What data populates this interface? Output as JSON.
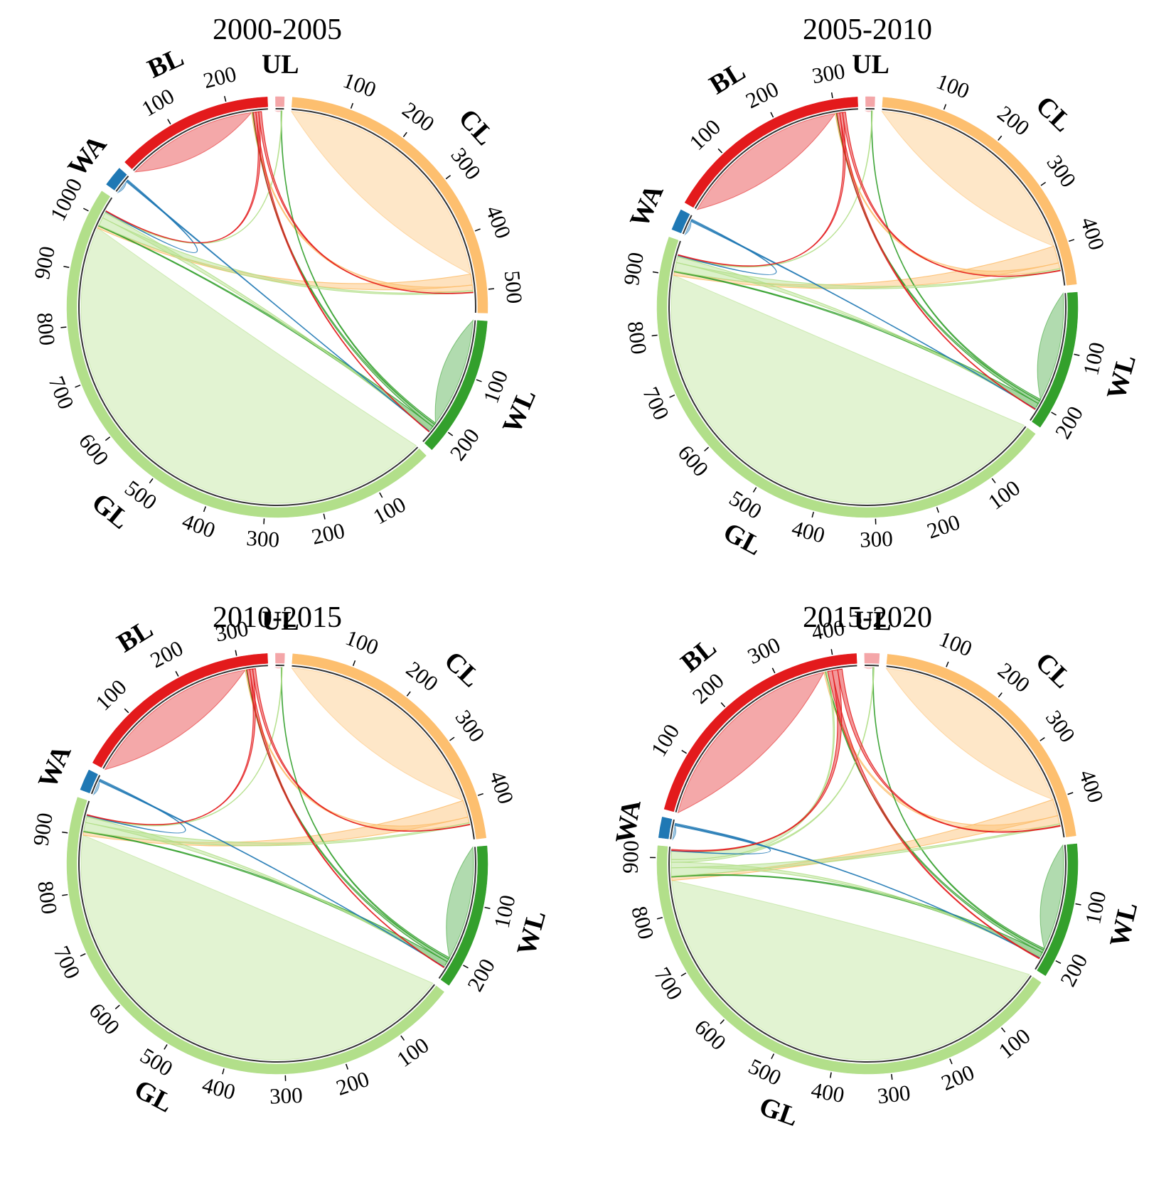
{
  "chart_data": [
    {
      "type": "chord",
      "title": "2000-2005",
      "sectors": [
        {
          "label": "UL",
          "size": 15,
          "color": "#f4a6a8",
          "ticks": []
        },
        {
          "label": "CL",
          "size": 540,
          "color": "#fdbf6f",
          "ticks": [
            100,
            200,
            300,
            400,
            500
          ]
        },
        {
          "label": "WL",
          "size": 240,
          "color": "#33a02c",
          "ticks": [
            100,
            200
          ]
        },
        {
          "label": "GL",
          "size": 1040,
          "color": "#b2df8a",
          "ticks": [
            100,
            200,
            300,
            400,
            500,
            600,
            700,
            800,
            900,
            1000
          ]
        },
        {
          "label": "WA",
          "size": 35,
          "color": "#1f78b4",
          "ticks": []
        },
        {
          "label": "BL",
          "size": 270,
          "color": "#e31a1c",
          "ticks": [
            100,
            200
          ]
        }
      ],
      "flows": [
        {
          "from": "UL",
          "to": "UL",
          "value": 10
        },
        {
          "from": "CL",
          "to": "CL",
          "value": 470
        },
        {
          "from": "CL",
          "to": "GL",
          "value": 20
        },
        {
          "from": "CL",
          "to": "BL",
          "value": 10
        },
        {
          "from": "WL",
          "to": "WL",
          "value": 200
        },
        {
          "from": "WL",
          "to": "UL",
          "value": 3
        },
        {
          "from": "WL",
          "to": "BL",
          "value": 5
        },
        {
          "from": "WL",
          "to": "GL",
          "value": 8
        },
        {
          "from": "GL",
          "to": "GL",
          "value": 980
        },
        {
          "from": "GL",
          "to": "CL",
          "value": 15
        },
        {
          "from": "GL",
          "to": "WL",
          "value": 10
        },
        {
          "from": "GL",
          "to": "UL",
          "value": 2
        },
        {
          "from": "WA",
          "to": "WA",
          "value": 25
        },
        {
          "from": "WA",
          "to": "WL",
          "value": 2
        },
        {
          "from": "WA",
          "to": "GL",
          "value": 2
        },
        {
          "from": "BL",
          "to": "BL",
          "value": 240
        },
        {
          "from": "BL",
          "to": "WL",
          "value": 5
        },
        {
          "from": "BL",
          "to": "GL",
          "value": 5
        },
        {
          "from": "BL",
          "to": "CL",
          "value": 5
        }
      ]
    },
    {
      "type": "chord",
      "title": "2005-2010",
      "sectors": [
        {
          "label": "UL",
          "size": 15,
          "color": "#f4a6a8",
          "ticks": []
        },
        {
          "label": "CL",
          "size": 470,
          "color": "#fdbf6f",
          "ticks": [
            100,
            200,
            300,
            400
          ]
        },
        {
          "label": "WL",
          "size": 230,
          "color": "#33a02c",
          "ticks": [
            100,
            200
          ]
        },
        {
          "label": "GL",
          "size": 960,
          "color": "#b2df8a",
          "ticks": [
            100,
            200,
            300,
            400,
            500,
            600,
            700,
            800,
            900
          ]
        },
        {
          "label": "WA",
          "size": 35,
          "color": "#1f78b4",
          "ticks": []
        },
        {
          "label": "BL",
          "size": 340,
          "color": "#e31a1c",
          "ticks": [
            100,
            200,
            300
          ]
        }
      ],
      "flows": [
        {
          "from": "UL",
          "to": "UL",
          "value": 10
        },
        {
          "from": "CL",
          "to": "CL",
          "value": 400
        },
        {
          "from": "CL",
          "to": "GL",
          "value": 30
        },
        {
          "from": "CL",
          "to": "BL",
          "value": 10
        },
        {
          "from": "WL",
          "to": "WL",
          "value": 190
        },
        {
          "from": "WL",
          "to": "UL",
          "value": 3
        },
        {
          "from": "WL",
          "to": "BL",
          "value": 5
        },
        {
          "from": "WL",
          "to": "GL",
          "value": 8
        },
        {
          "from": "GL",
          "to": "GL",
          "value": 900
        },
        {
          "from": "GL",
          "to": "CL",
          "value": 15
        },
        {
          "from": "GL",
          "to": "WL",
          "value": 10
        },
        {
          "from": "GL",
          "to": "UL",
          "value": 2
        },
        {
          "from": "WA",
          "to": "WA",
          "value": 25
        },
        {
          "from": "WA",
          "to": "WL",
          "value": 2
        },
        {
          "from": "WA",
          "to": "GL",
          "value": 2
        },
        {
          "from": "BL",
          "to": "BL",
          "value": 300
        },
        {
          "from": "BL",
          "to": "WL",
          "value": 5
        },
        {
          "from": "BL",
          "to": "GL",
          "value": 5
        },
        {
          "from": "BL",
          "to": "CL",
          "value": 5
        }
      ]
    },
    {
      "type": "chord",
      "title": "2010-2015",
      "sectors": [
        {
          "label": "UL",
          "size": 15,
          "color": "#f4a6a8",
          "ticks": []
        },
        {
          "label": "CL",
          "size": 470,
          "color": "#fdbf6f",
          "ticks": [
            100,
            200,
            300,
            400
          ]
        },
        {
          "label": "WL",
          "size": 240,
          "color": "#33a02c",
          "ticks": [
            100,
            200
          ]
        },
        {
          "label": "GL",
          "size": 960,
          "color": "#b2df8a",
          "ticks": [
            100,
            200,
            300,
            400,
            500,
            600,
            700,
            800,
            900
          ]
        },
        {
          "label": "WA",
          "size": 35,
          "color": "#1f78b4",
          "ticks": []
        },
        {
          "label": "BL",
          "size": 350,
          "color": "#e31a1c",
          "ticks": [
            100,
            200,
            300
          ]
        }
      ],
      "flows": [
        {
          "from": "UL",
          "to": "UL",
          "value": 10
        },
        {
          "from": "CL",
          "to": "CL",
          "value": 400
        },
        {
          "from": "CL",
          "to": "GL",
          "value": 30
        },
        {
          "from": "CL",
          "to": "BL",
          "value": 10
        },
        {
          "from": "WL",
          "to": "WL",
          "value": 200
        },
        {
          "from": "WL",
          "to": "UL",
          "value": 3
        },
        {
          "from": "WL",
          "to": "BL",
          "value": 5
        },
        {
          "from": "WL",
          "to": "GL",
          "value": 8
        },
        {
          "from": "GL",
          "to": "GL",
          "value": 900
        },
        {
          "from": "GL",
          "to": "CL",
          "value": 15
        },
        {
          "from": "GL",
          "to": "WL",
          "value": 10
        },
        {
          "from": "GL",
          "to": "UL",
          "value": 2
        },
        {
          "from": "WA",
          "to": "WA",
          "value": 25
        },
        {
          "from": "WA",
          "to": "WL",
          "value": 2
        },
        {
          "from": "WA",
          "to": "GL",
          "value": 2
        },
        {
          "from": "BL",
          "to": "BL",
          "value": 310
        },
        {
          "from": "BL",
          "to": "WL",
          "value": 5
        },
        {
          "from": "BL",
          "to": "GL",
          "value": 5
        },
        {
          "from": "BL",
          "to": "CL",
          "value": 5
        }
      ]
    },
    {
      "type": "chord",
      "title": "2015-2020",
      "sectors": [
        {
          "label": "UL",
          "size": 25,
          "color": "#f4a6a8",
          "ticks": []
        },
        {
          "label": "CL",
          "size": 470,
          "color": "#fdbf6f",
          "ticks": [
            100,
            200,
            300,
            400
          ]
        },
        {
          "label": "WL",
          "size": 230,
          "color": "#33a02c",
          "ticks": [
            100,
            200
          ]
        },
        {
          "label": "GL",
          "size": 920,
          "color": "#b2df8a",
          "ticks": [
            100,
            200,
            300,
            400,
            500,
            600,
            700,
            800,
            900
          ]
        },
        {
          "label": "WA",
          "size": 35,
          "color": "#1f78b4",
          "ticks": []
        },
        {
          "label": "BL",
          "size": 440,
          "color": "#e31a1c",
          "ticks": [
            100,
            200,
            300,
            400
          ]
        }
      ],
      "flows": [
        {
          "from": "UL",
          "to": "UL",
          "value": 15
        },
        {
          "from": "CL",
          "to": "CL",
          "value": 400
        },
        {
          "from": "CL",
          "to": "GL",
          "value": 30
        },
        {
          "from": "CL",
          "to": "BL",
          "value": 15
        },
        {
          "from": "WL",
          "to": "WL",
          "value": 190
        },
        {
          "from": "WL",
          "to": "UL",
          "value": 3
        },
        {
          "from": "WL",
          "to": "BL",
          "value": 5
        },
        {
          "from": "WL",
          "to": "GL",
          "value": 8
        },
        {
          "from": "GL",
          "to": "GL",
          "value": 860
        },
        {
          "from": "GL",
          "to": "CL",
          "value": 15
        },
        {
          "from": "GL",
          "to": "WL",
          "value": 10
        },
        {
          "from": "GL",
          "to": "UL",
          "value": 5
        },
        {
          "from": "GL",
          "to": "BL",
          "value": 15
        },
        {
          "from": "WA",
          "to": "WA",
          "value": 25
        },
        {
          "from": "WA",
          "to": "WL",
          "value": 2
        },
        {
          "from": "WA",
          "to": "GL",
          "value": 2
        },
        {
          "from": "BL",
          "to": "BL",
          "value": 380
        },
        {
          "from": "BL",
          "to": "WL",
          "value": 8
        },
        {
          "from": "BL",
          "to": "GL",
          "value": 10
        },
        {
          "from": "BL",
          "to": "CL",
          "value": 8
        }
      ]
    }
  ]
}
